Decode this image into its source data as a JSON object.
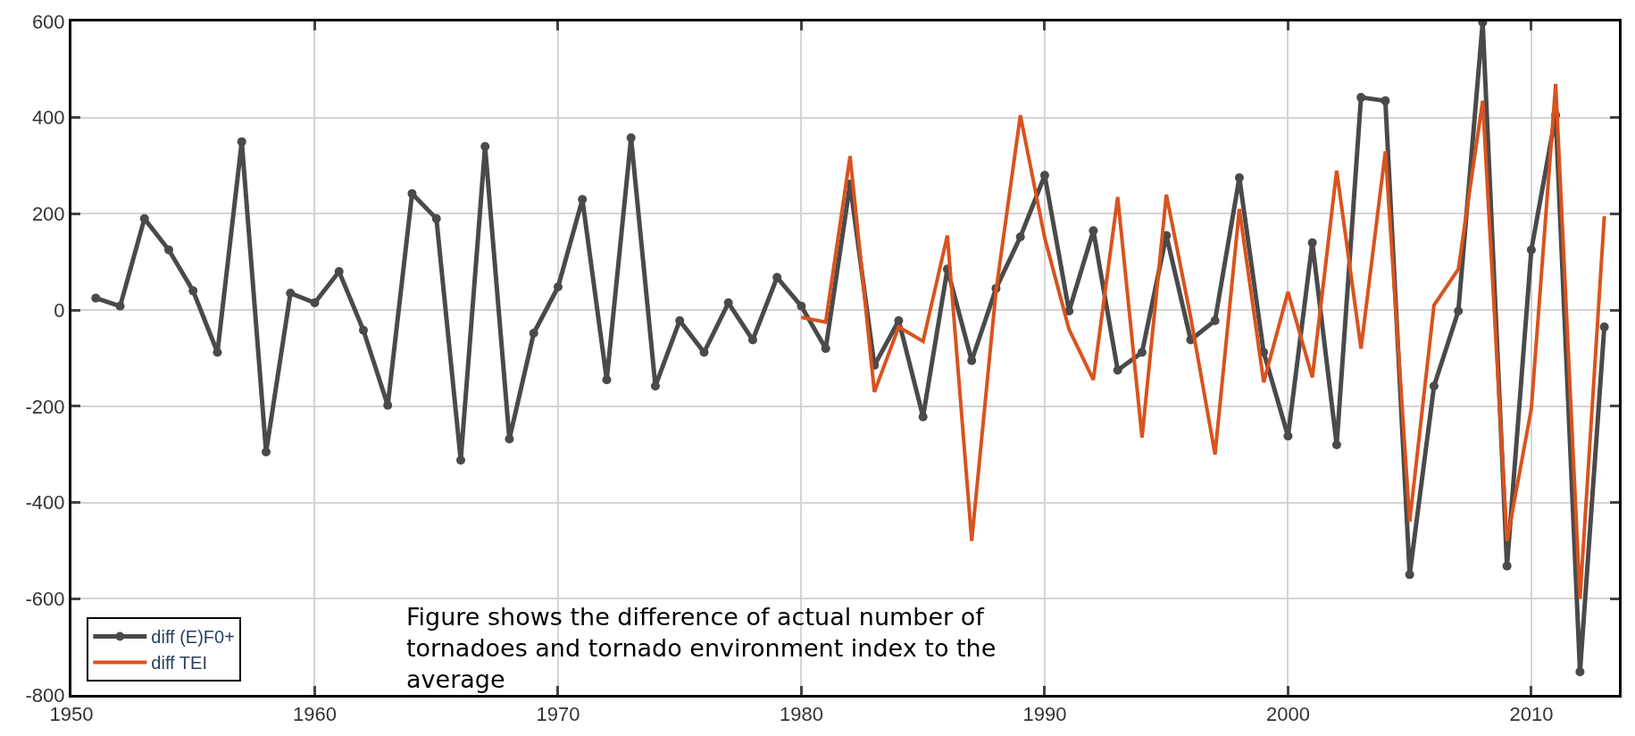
{
  "chart_data": {
    "type": "line",
    "x": [
      1951,
      1952,
      1953,
      1954,
      1955,
      1956,
      1957,
      1958,
      1959,
      1960,
      1961,
      1962,
      1963,
      1964,
      1965,
      1966,
      1967,
      1968,
      1969,
      1970,
      1971,
      1972,
      1973,
      1974,
      1975,
      1976,
      1977,
      1978,
      1979,
      1980,
      1981,
      1982,
      1983,
      1984,
      1985,
      1986,
      1987,
      1988,
      1989,
      1990,
      1991,
      1992,
      1993,
      1994,
      1995,
      1996,
      1997,
      1998,
      1999,
      2000,
      2001,
      2002,
      2003,
      2004,
      2005,
      2006,
      2007,
      2008,
      2009,
      2010,
      2011,
      2012,
      2013
    ],
    "series": [
      {
        "name": "diff (E)F0+",
        "color": "#4a4a4a",
        "marker": "circle",
        "values": [
          25,
          8,
          190,
          125,
          40,
          -88,
          350,
          -295,
          35,
          15,
          80,
          -42,
          -198,
          242,
          190,
          -312,
          340,
          -268,
          -48,
          48,
          230,
          -145,
          358,
          -158,
          -22,
          -88,
          15,
          -62,
          68,
          8,
          -80,
          262,
          -115,
          -22,
          -222,
          85,
          -105,
          45,
          152,
          280,
          -2,
          165,
          -125,
          -88,
          155,
          -62,
          -22,
          275,
          -88,
          -262,
          140,
          -280,
          442,
          435,
          -550,
          -158,
          -2,
          598,
          -532,
          125,
          405,
          -752,
          -35
        ]
      },
      {
        "name": "diff TEI",
        "color": "#d9531e",
        "marker": "none",
        "x": [
          1980,
          1981,
          1982,
          1983,
          1984,
          1985,
          1986,
          1987,
          1988,
          1989,
          1990,
          1991,
          1992,
          1993,
          1994,
          1995,
          1996,
          1997,
          1998,
          1999,
          2000,
          2001,
          2002,
          2003,
          2004,
          2005,
          2006,
          2007,
          2008,
          2009,
          2010,
          2011,
          2012,
          2013
        ],
        "values": [
          -15,
          -25,
          320,
          -170,
          -35,
          -65,
          155,
          -480,
          40,
          405,
          150,
          -40,
          -145,
          235,
          -265,
          240,
          -15,
          -300,
          210,
          -150,
          38,
          -140,
          290,
          -80,
          330,
          -440,
          10,
          85,
          435,
          -480,
          -205,
          470,
          -600,
          195
        ]
      }
    ],
    "xlim": [
      1950,
      2013.6
    ],
    "xticks": [
      1950,
      1960,
      1970,
      1980,
      1990,
      2000,
      2010
    ],
    "ylim": [
      -800,
      600
    ],
    "yticks": [
      -800,
      -600,
      -400,
      -200,
      0,
      200,
      400,
      600
    ],
    "grid": true,
    "legend": "bottom left",
    "line_style": "solid",
    "annotations": [
      "Figure shows the difference of actual number of tornadoes and tornado environment index to the average"
    ]
  }
}
